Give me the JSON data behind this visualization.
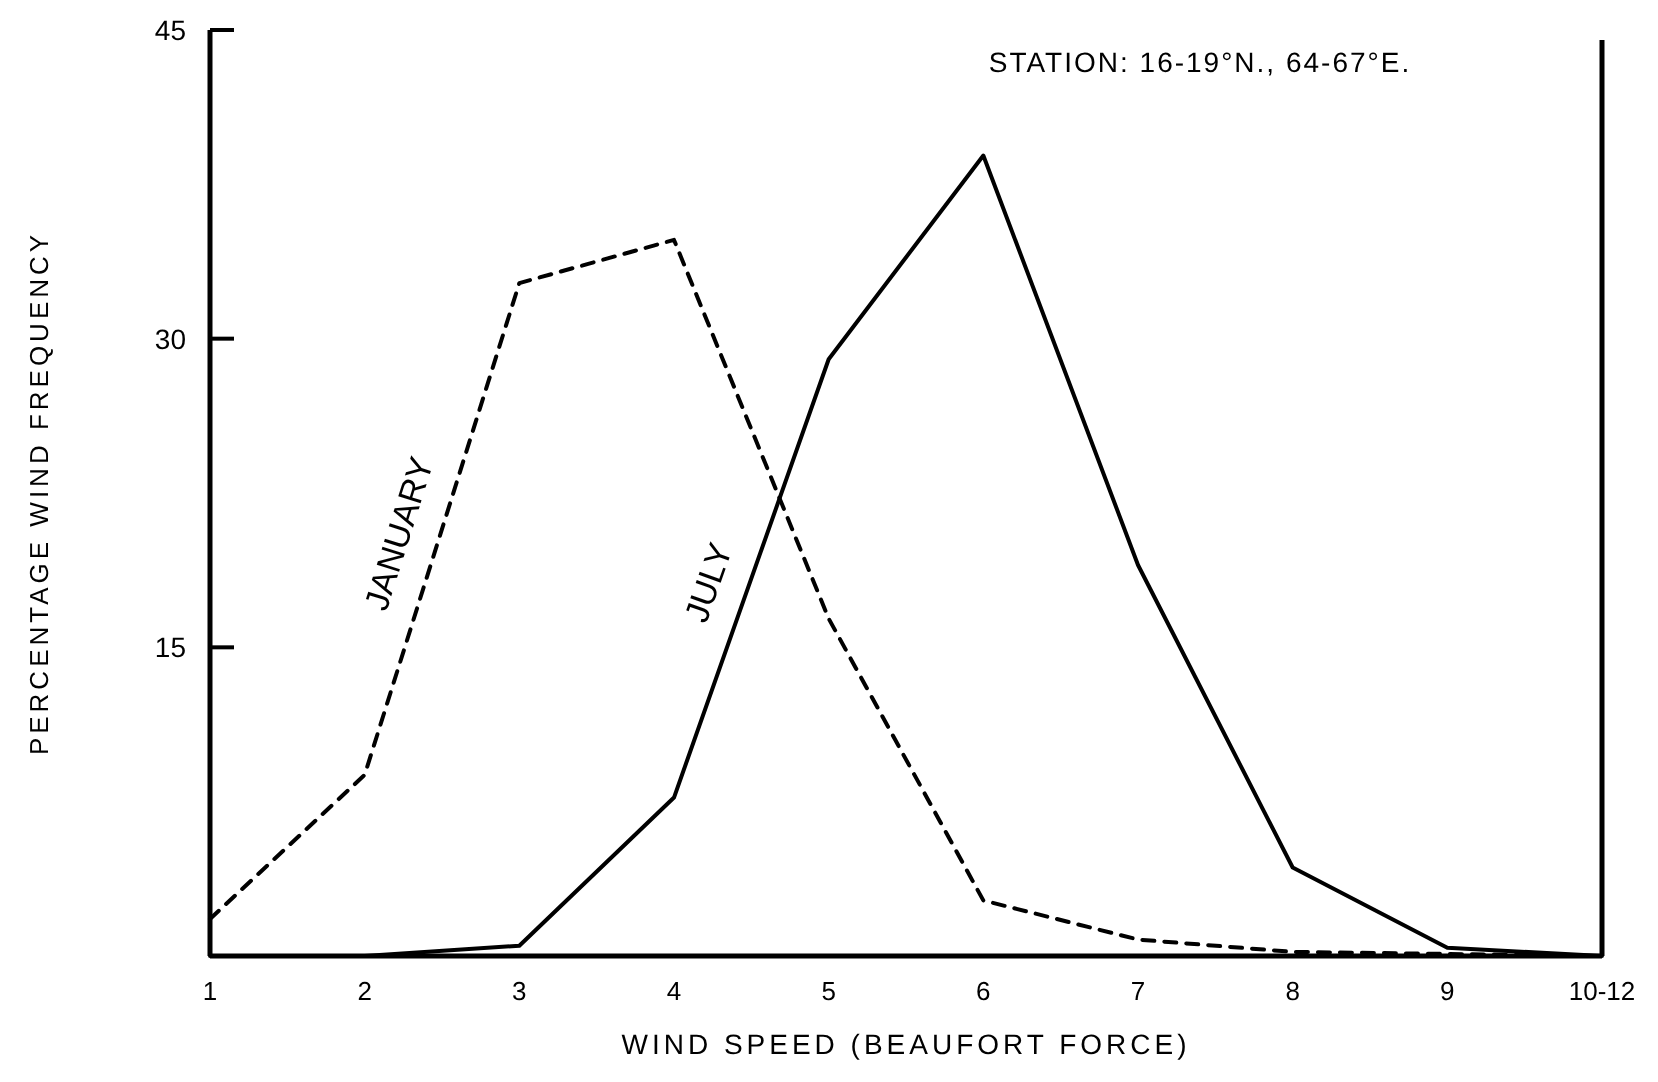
{
  "chart_data": {
    "type": "line",
    "title": "STATION: 16-19°N., 64-67°E.",
    "xlabel": "WIND SPEED (BEAUFORT FORCE)",
    "ylabel": "PERCENTAGE WIND FREQUENCY",
    "categories": [
      "1",
      "2",
      "3",
      "4",
      "5",
      "6",
      "7",
      "8",
      "9",
      "10-12"
    ],
    "series": [
      {
        "name": "JANUARY",
        "color": "#000000",
        "line_style": "dashed",
        "values": [
          1.8,
          8.8,
          32.7,
          34.8,
          16.4,
          2.7,
          0.8,
          0.2,
          0.1,
          0
        ]
      },
      {
        "name": "JULY",
        "color": "#000000",
        "line_style": "solid",
        "values": [
          0,
          0,
          0.5,
          7.7,
          29,
          38.9,
          19,
          4.3,
          0.4,
          0
        ]
      }
    ],
    "ylim": [
      0,
      45
    ],
    "yticks": [
      {
        "value": 0,
        "label": null
      },
      15,
      30,
      45
    ],
    "grid": false,
    "marker": "none"
  }
}
